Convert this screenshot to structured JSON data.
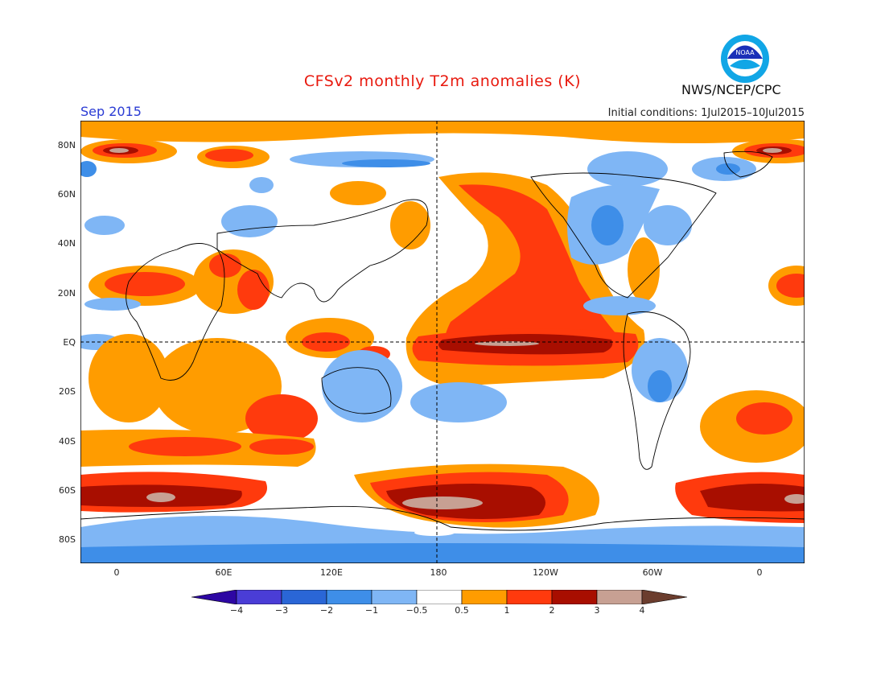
{
  "title": "CFSv2 monthly T2m anomalies (K)",
  "month": "Sep 2015",
  "initial_conditions": "Initial conditions: 1Jul2015–10Jul2015",
  "agency": "NWS/NCEP/CPC",
  "logo_text": "NOAA",
  "lat_labels": [
    "80N",
    "60N",
    "40N",
    "20N",
    "EQ",
    "20S",
    "40S",
    "60S",
    "80S"
  ],
  "lon_labels": [
    "0",
    "60E",
    "120E",
    "180",
    "120W",
    "60W",
    "0"
  ],
  "colorbar": {
    "labels": [
      "−4",
      "−3",
      "−2",
      "−1",
      "−0.5",
      "0.5",
      "1",
      "2",
      "3",
      "4"
    ],
    "colors": [
      "#2d07a3",
      "#4a3dd6",
      "#2a66d6",
      "#3e8ee8",
      "#7fb6f5",
      "#ffffff",
      "#ff9c00",
      "#ff3a0d",
      "#a80e00",
      "#c7a093",
      "#6b3d2e"
    ]
  }
}
